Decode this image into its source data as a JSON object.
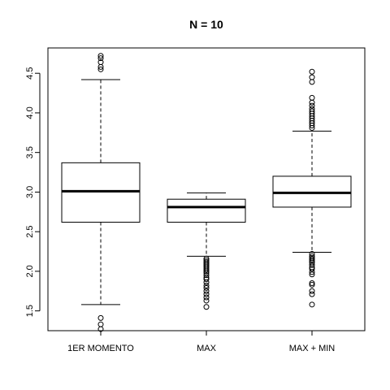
{
  "chart_data": {
    "type": "boxplot",
    "title": "N = 10",
    "xlabel": "",
    "ylabel": "",
    "ylim": [
      1.25,
      4.82
    ],
    "yticks": [
      1.5,
      2.0,
      2.5,
      3.0,
      3.5,
      4.0,
      4.5
    ],
    "ytick_labels": [
      "1.5",
      "2.0",
      "2.5",
      "3.0",
      "3.5",
      "4.0",
      "4.5"
    ],
    "grid": false,
    "categories": [
      "1ER MOMENTO",
      "MAX",
      "MAX + MIN"
    ],
    "boxes": [
      {
        "category": "1ER MOMENTO",
        "whisker_low": 1.58,
        "q1": 2.62,
        "median": 3.01,
        "q3": 3.37,
        "whisker_high": 4.42,
        "outliers": [
          1.27,
          1.33,
          1.41,
          4.55,
          4.58,
          4.64,
          4.69,
          4.72
        ]
      },
      {
        "category": "MAX",
        "whisker_low": 2.19,
        "q1": 2.62,
        "median": 2.81,
        "q3": 2.91,
        "whisker_high": 2.99,
        "outliers": [
          2.16,
          2.14,
          2.12,
          2.1,
          2.08,
          2.06,
          2.04,
          2.02,
          2.0,
          1.98,
          1.95,
          1.92,
          1.9,
          1.86,
          1.82,
          1.79,
          1.75,
          1.71,
          1.67,
          1.63,
          1.55
        ]
      },
      {
        "category": "MAX + MIN",
        "whisker_low": 2.24,
        "q1": 2.81,
        "median": 2.99,
        "q3": 3.2,
        "whisker_high": 3.77,
        "outliers": [
          2.22,
          2.19,
          2.17,
          2.15,
          2.13,
          2.11,
          2.08,
          2.05,
          2.03,
          1.99,
          1.96,
          1.85,
          1.83,
          1.75,
          1.71,
          1.58,
          3.81,
          3.84,
          3.87,
          3.9,
          3.93,
          3.96,
          3.99,
          4.02,
          4.05,
          4.09,
          4.13,
          4.19,
          4.39,
          4.45,
          4.52
        ]
      }
    ]
  }
}
